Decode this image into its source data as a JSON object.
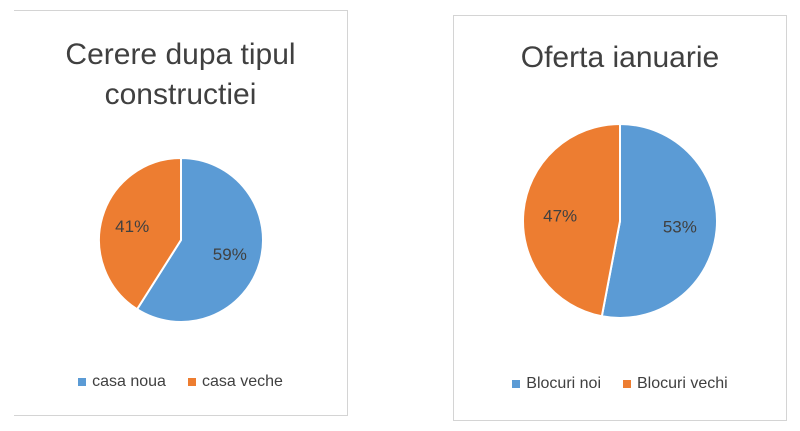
{
  "chart_data": [
    {
      "type": "pie",
      "title": "Cerere dupa tipul constructiei",
      "categories": [
        "casa noua",
        "casa veche"
      ],
      "values": [
        59,
        41
      ],
      "labels": [
        "59%",
        "41%"
      ],
      "colors": [
        "#5b9bd5",
        "#ed7d31"
      ],
      "legend": "bottom"
    },
    {
      "type": "pie",
      "title": "Oferta ianuarie",
      "categories": [
        "Blocuri noi",
        "Blocuri vechi"
      ],
      "values": [
        53,
        47
      ],
      "labels": [
        "53%",
        "47%"
      ],
      "colors": [
        "#5b9bd5",
        "#ed7d31"
      ],
      "legend": "bottom"
    }
  ]
}
